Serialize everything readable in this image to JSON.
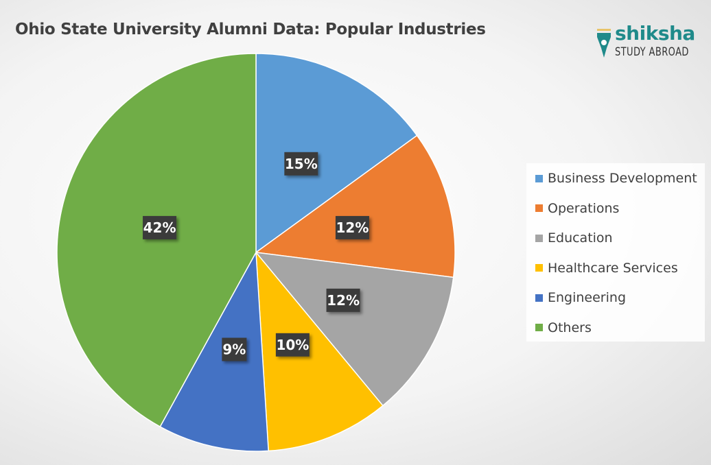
{
  "chart_data": {
    "type": "pie",
    "title": "Ohio State University Alumni Data: Popular Industries",
    "categories": [
      "Business Development",
      "Operations",
      "Education",
      "Healthcare Services",
      "Engineering",
      "Others"
    ],
    "values": [
      15,
      12,
      12,
      10,
      9,
      42
    ],
    "data_labels": [
      "15%",
      "12%",
      "12%",
      "10%",
      "9%",
      "42%"
    ],
    "colors": [
      "#5B9BD5",
      "#ED7D31",
      "#A5A5A5",
      "#FFC000",
      "#4472C4",
      "#70AD47"
    ],
    "start": "top",
    "direction": "clockwise",
    "legend_position": "right"
  },
  "logo": {
    "brand": "shiksha",
    "sub": "STUDY ABROAD"
  }
}
